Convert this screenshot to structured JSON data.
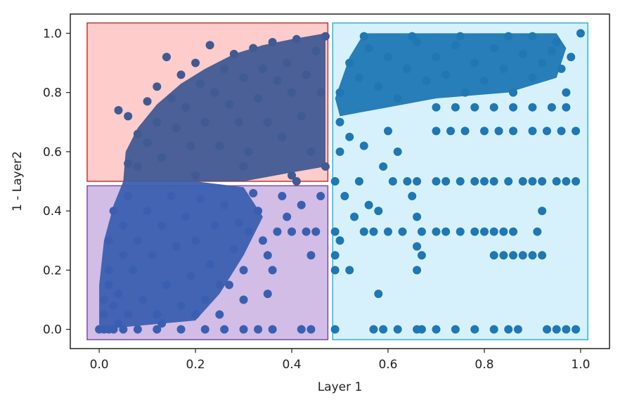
{
  "chart_data": {
    "type": "scatter",
    "title": "",
    "xlabel": "Layer 1",
    "ylabel": "1 - Layer2",
    "xlim": [
      -0.06,
      1.06
    ],
    "ylim": [
      -0.065,
      1.065
    ],
    "xticks": [
      0.0,
      0.2,
      0.4,
      0.6,
      0.8,
      1.0
    ],
    "yticks": [
      0.0,
      0.2,
      0.4,
      0.6,
      0.8,
      1.0
    ],
    "xtick_labels": [
      "0.0",
      "0.2",
      "0.4",
      "0.6",
      "0.8",
      "1.0"
    ],
    "ytick_labels": [
      "0.0",
      "0.2",
      "0.4",
      "0.6",
      "0.8",
      "1.0"
    ],
    "grid": false,
    "point_color": "#1f77b4",
    "regions": [
      {
        "x0": -0.025,
        "x1": 0.475,
        "y0": 0.5,
        "y1": 1.035,
        "fill": "#ffcccc",
        "stroke": "#c0392b"
      },
      {
        "x0": -0.025,
        "x1": 0.475,
        "y0": -0.035,
        "y1": 0.485,
        "fill": "#d2bde6",
        "stroke": "#7b4fa0"
      },
      {
        "x0": 0.485,
        "x1": 1.015,
        "y0": -0.035,
        "y1": 1.035,
        "fill": "#d6f1fb",
        "stroke": "#2bb3d9"
      }
    ],
    "series": [
      {
        "points": [
          [
            0.0,
            0.0
          ],
          [
            0.01,
            0.0
          ],
          [
            0.02,
            0.0
          ],
          [
            0.03,
            0.0
          ],
          [
            0.05,
            0.0
          ],
          [
            0.08,
            0.0
          ],
          [
            0.12,
            0.0
          ],
          [
            0.17,
            0.0
          ],
          [
            0.22,
            0.0
          ],
          [
            0.26,
            0.0
          ],
          [
            0.3,
            0.0
          ],
          [
            0.33,
            0.0
          ],
          [
            0.36,
            0.0
          ],
          [
            0.42,
            0.0
          ],
          [
            0.44,
            0.0
          ],
          [
            0.49,
            0.0
          ],
          [
            0.57,
            0.0
          ],
          [
            0.59,
            0.0
          ],
          [
            0.62,
            0.0
          ],
          [
            0.66,
            0.0
          ],
          [
            0.67,
            0.0
          ],
          [
            0.7,
            0.0
          ],
          [
            0.74,
            0.0
          ],
          [
            0.78,
            0.0
          ],
          [
            0.82,
            0.0
          ],
          [
            0.85,
            0.0
          ],
          [
            0.87,
            0.0
          ],
          [
            0.93,
            0.0
          ],
          [
            0.95,
            0.0
          ],
          [
            0.97,
            0.0
          ],
          [
            0.99,
            0.0
          ],
          [
            0.01,
            0.05
          ],
          [
            0.01,
            0.1
          ],
          [
            0.02,
            0.15
          ],
          [
            0.02,
            0.2
          ],
          [
            0.02,
            0.3
          ],
          [
            0.03,
            0.4
          ],
          [
            0.03,
            0.08
          ],
          [
            0.04,
            0.12
          ],
          [
            0.05,
            0.25
          ],
          [
            0.05,
            0.35
          ],
          [
            0.06,
            0.05
          ],
          [
            0.06,
            0.45
          ],
          [
            0.07,
            0.2
          ],
          [
            0.08,
            0.3
          ],
          [
            0.09,
            0.1
          ],
          [
            0.1,
            0.4
          ],
          [
            0.11,
            0.25
          ],
          [
            0.12,
            0.05
          ],
          [
            0.13,
            0.35
          ],
          [
            0.14,
            0.15
          ],
          [
            0.15,
            0.45
          ],
          [
            0.16,
            0.28
          ],
          [
            0.17,
            0.08
          ],
          [
            0.18,
            0.38
          ],
          [
            0.19,
            0.18
          ],
          [
            0.2,
            0.3
          ],
          [
            0.21,
            0.44
          ],
          [
            0.22,
            0.1
          ],
          [
            0.23,
            0.22
          ],
          [
            0.24,
            0.35
          ],
          [
            0.25,
            0.05
          ],
          [
            0.26,
            0.42
          ],
          [
            0.27,
            0.15
          ],
          [
            0.28,
            0.27
          ],
          [
            0.29,
            0.36
          ],
          [
            0.3,
            0.2
          ],
          [
            0.31,
            0.33
          ],
          [
            0.32,
            0.46
          ],
          [
            0.33,
            0.4
          ],
          [
            0.34,
            0.3
          ],
          [
            0.35,
            0.25
          ],
          [
            0.36,
            0.2
          ],
          [
            0.37,
            0.33
          ],
          [
            0.38,
            0.45
          ],
          [
            0.39,
            0.38
          ],
          [
            0.4,
            0.33
          ],
          [
            0.41,
            0.5
          ],
          [
            0.42,
            0.42
          ],
          [
            0.43,
            0.33
          ],
          [
            0.44,
            0.25
          ],
          [
            0.45,
            0.33
          ],
          [
            0.46,
            0.45
          ],
          [
            0.3,
            0.1
          ],
          [
            0.25,
            0.15
          ],
          [
            0.2,
            0.05
          ],
          [
            0.35,
            0.12
          ],
          [
            0.13,
            0.02
          ],
          [
            0.04,
            0.02
          ],
          [
            0.04,
            0.74
          ],
          [
            0.06,
            0.72
          ],
          [
            0.06,
            0.56
          ],
          [
            0.08,
            0.66
          ],
          [
            0.08,
            0.55
          ],
          [
            0.1,
            0.77
          ],
          [
            0.1,
            0.63
          ],
          [
            0.12,
            0.82
          ],
          [
            0.12,
            0.7
          ],
          [
            0.13,
            0.58
          ],
          [
            0.14,
            0.92
          ],
          [
            0.15,
            0.78
          ],
          [
            0.16,
            0.68
          ],
          [
            0.17,
            0.86
          ],
          [
            0.18,
            0.75
          ],
          [
            0.19,
            0.62
          ],
          [
            0.2,
            0.9
          ],
          [
            0.21,
            0.83
          ],
          [
            0.22,
            0.7
          ],
          [
            0.23,
            0.96
          ],
          [
            0.24,
            0.8
          ],
          [
            0.25,
            0.62
          ],
          [
            0.26,
            0.88
          ],
          [
            0.27,
            0.76
          ],
          [
            0.28,
            0.93
          ],
          [
            0.29,
            0.7
          ],
          [
            0.3,
            0.85
          ],
          [
            0.31,
            0.6
          ],
          [
            0.32,
            0.95
          ],
          [
            0.33,
            0.78
          ],
          [
            0.34,
            0.88
          ],
          [
            0.35,
            0.7
          ],
          [
            0.36,
            0.97
          ],
          [
            0.37,
            0.84
          ],
          [
            0.38,
            0.65
          ],
          [
            0.39,
            0.9
          ],
          [
            0.4,
            0.8
          ],
          [
            0.41,
            0.98
          ],
          [
            0.42,
            0.72
          ],
          [
            0.43,
            0.86
          ],
          [
            0.44,
            0.6
          ],
          [
            0.45,
            0.94
          ],
          [
            0.46,
            0.8
          ],
          [
            0.47,
            0.99
          ],
          [
            0.47,
            0.55
          ],
          [
            0.3,
            0.55
          ],
          [
            0.2,
            0.52
          ],
          [
            0.4,
            0.52
          ],
          [
            0.49,
            0.5
          ],
          [
            0.5,
            0.6
          ],
          [
            0.5,
            0.7
          ],
          [
            0.51,
            0.45
          ],
          [
            0.52,
            0.65
          ],
          [
            0.53,
            0.38
          ],
          [
            0.54,
            0.5
          ],
          [
            0.55,
            0.62
          ],
          [
            0.56,
            0.42
          ],
          [
            0.57,
            0.33
          ],
          [
            0.58,
            0.4
          ],
          [
            0.59,
            0.55
          ],
          [
            0.6,
            0.67
          ],
          [
            0.61,
            0.5
          ],
          [
            0.62,
            0.6
          ],
          [
            0.63,
            0.33
          ],
          [
            0.64,
            0.5
          ],
          [
            0.65,
            0.45
          ],
          [
            0.66,
            0.38
          ],
          [
            0.66,
            0.5
          ],
          [
            0.67,
            0.33
          ],
          [
            0.67,
            0.25
          ],
          [
            0.49,
            0.33
          ],
          [
            0.49,
            0.25
          ],
          [
            0.49,
            0.2
          ],
          [
            0.5,
            0.3
          ],
          [
            0.52,
            0.2
          ],
          [
            0.55,
            0.33
          ],
          [
            0.58,
            0.12
          ],
          [
            0.6,
            0.33
          ],
          [
            0.66,
            0.2
          ],
          [
            0.66,
            0.28
          ],
          [
            0.7,
            0.5
          ],
          [
            0.72,
            0.5
          ],
          [
            0.75,
            0.5
          ],
          [
            0.78,
            0.5
          ],
          [
            0.8,
            0.5
          ],
          [
            0.82,
            0.5
          ],
          [
            0.85,
            0.5
          ],
          [
            0.88,
            0.5
          ],
          [
            0.9,
            0.5
          ],
          [
            0.92,
            0.5
          ],
          [
            0.95,
            0.5
          ],
          [
            0.97,
            0.5
          ],
          [
            0.99,
            0.5
          ],
          [
            0.7,
            0.33
          ],
          [
            0.72,
            0.33
          ],
          [
            0.75,
            0.33
          ],
          [
            0.78,
            0.33
          ],
          [
            0.8,
            0.33
          ],
          [
            0.82,
            0.33
          ],
          [
            0.84,
            0.33
          ],
          [
            0.86,
            0.33
          ],
          [
            0.91,
            0.33
          ],
          [
            0.92,
            0.4
          ],
          [
            0.82,
            0.25
          ],
          [
            0.84,
            0.25
          ],
          [
            0.86,
            0.25
          ],
          [
            0.88,
            0.25
          ],
          [
            0.9,
            0.25
          ],
          [
            0.92,
            0.25
          ],
          [
            0.7,
            0.67
          ],
          [
            0.73,
            0.67
          ],
          [
            0.76,
            0.67
          ],
          [
            0.8,
            0.67
          ],
          [
            0.83,
            0.67
          ],
          [
            0.86,
            0.67
          ],
          [
            0.9,
            0.67
          ],
          [
            0.93,
            0.67
          ],
          [
            0.96,
            0.67
          ],
          [
            0.99,
            0.67
          ],
          [
            0.7,
            0.75
          ],
          [
            0.74,
            0.75
          ],
          [
            0.78,
            0.75
          ],
          [
            0.82,
            0.75
          ],
          [
            0.86,
            0.75
          ],
          [
            0.9,
            0.75
          ],
          [
            0.94,
            0.75
          ],
          [
            0.97,
            0.75
          ],
          [
            0.5,
            0.8
          ],
          [
            0.52,
            0.9
          ],
          [
            0.54,
            0.85
          ],
          [
            0.56,
            0.95
          ],
          [
            0.58,
            0.82
          ],
          [
            0.6,
            0.92
          ],
          [
            0.62,
            0.78
          ],
          [
            0.64,
            0.88
          ],
          [
            0.66,
            0.97
          ],
          [
            0.68,
            0.84
          ],
          [
            0.7,
            0.92
          ],
          [
            0.72,
            0.86
          ],
          [
            0.74,
            0.96
          ],
          [
            0.76,
            0.8
          ],
          [
            0.78,
            0.9
          ],
          [
            0.8,
            0.84
          ],
          [
            0.82,
            0.95
          ],
          [
            0.84,
            0.88
          ],
          [
            0.86,
            0.8
          ],
          [
            0.88,
            0.93
          ],
          [
            0.9,
            0.85
          ],
          [
            0.92,
            0.9
          ],
          [
            0.94,
            0.94
          ],
          [
            0.96,
            0.88
          ],
          [
            0.97,
            0.8
          ],
          [
            0.98,
            0.92
          ],
          [
            1.0,
            1.0
          ],
          [
            0.55,
            0.99
          ],
          [
            0.65,
            0.99
          ],
          [
            0.75,
            0.99
          ],
          [
            0.85,
            0.99
          ],
          [
            0.9,
            0.99
          ],
          [
            0.95,
            0.97
          ]
        ]
      }
    ]
  }
}
